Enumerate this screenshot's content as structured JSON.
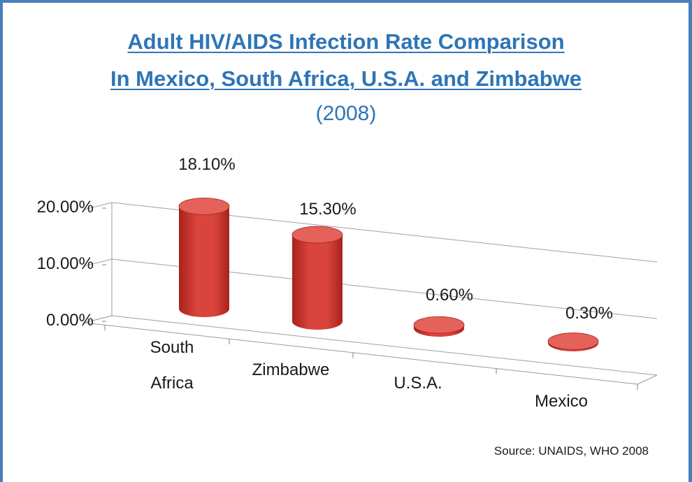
{
  "title_line1": "Adult HIV/AIDS Infection Rate Comparison",
  "title_line2": "In Mexico, South Africa, U.S.A. and Zimbabwe",
  "subtitle": "(2008)",
  "source": "Source: UNAIDS, WHO 2008",
  "colors": {
    "bar": "#d9443c",
    "bar_dark": "#a8231c",
    "bar_top": "#e5625b",
    "title": "#2e75b6",
    "frame": "#4a7ebb"
  },
  "chart_data": {
    "type": "bar",
    "style": "3d-cylinder",
    "categories": [
      "South Africa",
      "Zimbabwe",
      "U.S.A.",
      "Mexico"
    ],
    "values": [
      18.1,
      15.3,
      0.6,
      0.3
    ],
    "data_labels": [
      "18.10%",
      "15.30%",
      "0.60%",
      "0.30%"
    ],
    "yticks": [
      0,
      10,
      20
    ],
    "ytick_labels": [
      "0.00%",
      "10.00%",
      "20.00%"
    ],
    "ylim": [
      0,
      20
    ],
    "grid": true,
    "legend": "none"
  }
}
